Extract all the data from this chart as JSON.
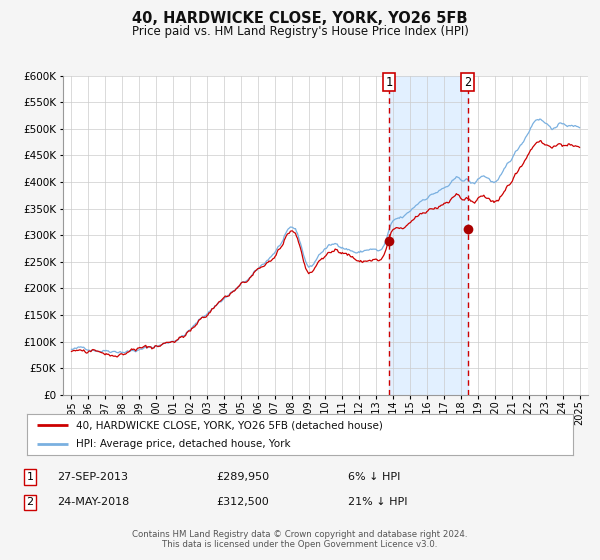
{
  "title": "40, HARDWICKE CLOSE, YORK, YO26 5FB",
  "subtitle": "Price paid vs. HM Land Registry's House Price Index (HPI)",
  "legend_line1": "40, HARDWICKE CLOSE, YORK, YO26 5FB (detached house)",
  "legend_line2": "HPI: Average price, detached house, York",
  "footer1": "Contains HM Land Registry data © Crown copyright and database right 2024.",
  "footer2": "This data is licensed under the Open Government Licence v3.0.",
  "sale1_date": "27-SEP-2013",
  "sale1_price": "£289,950",
  "sale1_pct": "6% ↓ HPI",
  "sale2_date": "24-MAY-2018",
  "sale2_price": "£312,500",
  "sale2_pct": "21% ↓ HPI",
  "sale1_x": 2013.74,
  "sale1_y": 289950,
  "sale2_x": 2018.39,
  "sale2_y": 312500,
  "vline1_x": 2013.74,
  "vline2_x": 2018.39,
  "shade_x1": 2013.74,
  "shade_x2": 2018.39,
  "ylim": [
    0,
    600000
  ],
  "xlim": [
    1994.5,
    2025.5
  ],
  "hpi_color": "#7ab0e0",
  "price_color": "#cc0000",
  "shade_color": "#ddeeff",
  "vline_color": "#cc0000",
  "grid_color": "#cccccc",
  "bg_color": "#f5f5f5",
  "plot_bg": "#ffffff",
  "marker_color": "#aa0000",
  "label1_num": "1",
  "label2_num": "2"
}
